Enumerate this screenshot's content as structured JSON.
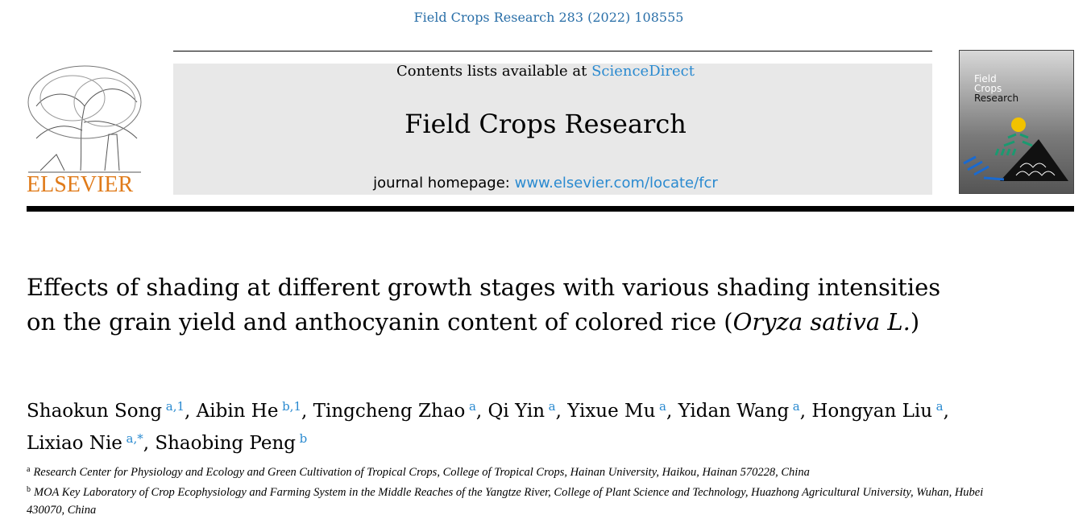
{
  "journal_ref": "Field Crops Research 283 (2022) 108555",
  "header": {
    "contents_prefix": "Contents lists available at ",
    "contents_link": "ScienceDirect",
    "journal_title": "Field Crops Research",
    "homepage_prefix": "journal homepage: ",
    "homepage_link": "www.elsevier.com/locate/fcr",
    "publisher": "ELSEVIER",
    "publisher_color": "#e07b1a",
    "cover": {
      "line1": "Field",
      "line2": "Crops",
      "line3": "Research"
    }
  },
  "title": {
    "part1": "Effects of shading at different growth stages with various shading intensities on the grain yield and anthocyanin content of colored rice (",
    "italic": "Oryza sativa L.",
    "part2": ")"
  },
  "authors": [
    {
      "name": "Shaokun Song",
      "sup": "a,1",
      "sep": ", "
    },
    {
      "name": "Aibin He",
      "sup": "b,1",
      "sep": ", "
    },
    {
      "name": "Tingcheng Zhao",
      "sup": "a",
      "sep": ", "
    },
    {
      "name": "Qi Yin",
      "sup": "a",
      "sep": ", "
    },
    {
      "name": "Yixue Mu",
      "sup": "a",
      "sep": ", "
    },
    {
      "name": "Yidan Wang",
      "sup": "a",
      "sep": ", "
    },
    {
      "name": "Hongyan Liu",
      "sup": "a",
      "sep": ", "
    },
    {
      "name": "Lixiao Nie",
      "sup": "a,*",
      "sep": ", "
    },
    {
      "name": "Shaobing Peng",
      "sup": "b",
      "sep": ""
    }
  ],
  "affiliations": [
    {
      "label": "a",
      "text": "Research Center for Physiology and Ecology and Green Cultivation of Tropical Crops, College of Tropical Crops, Hainan University, Haikou, Hainan 570228, China"
    },
    {
      "label": "b",
      "text": "MOA Key Laboratory of Crop Ecophysiology and Farming System in the Middle Reaches of the Yangtze River, College of Plant Science and Technology, Huazhong Agricultural University, Wuhan, Hubei 430070, China"
    }
  ],
  "colors": {
    "link": "#2a8ad0",
    "journal_ref": "#2a6fa8"
  }
}
